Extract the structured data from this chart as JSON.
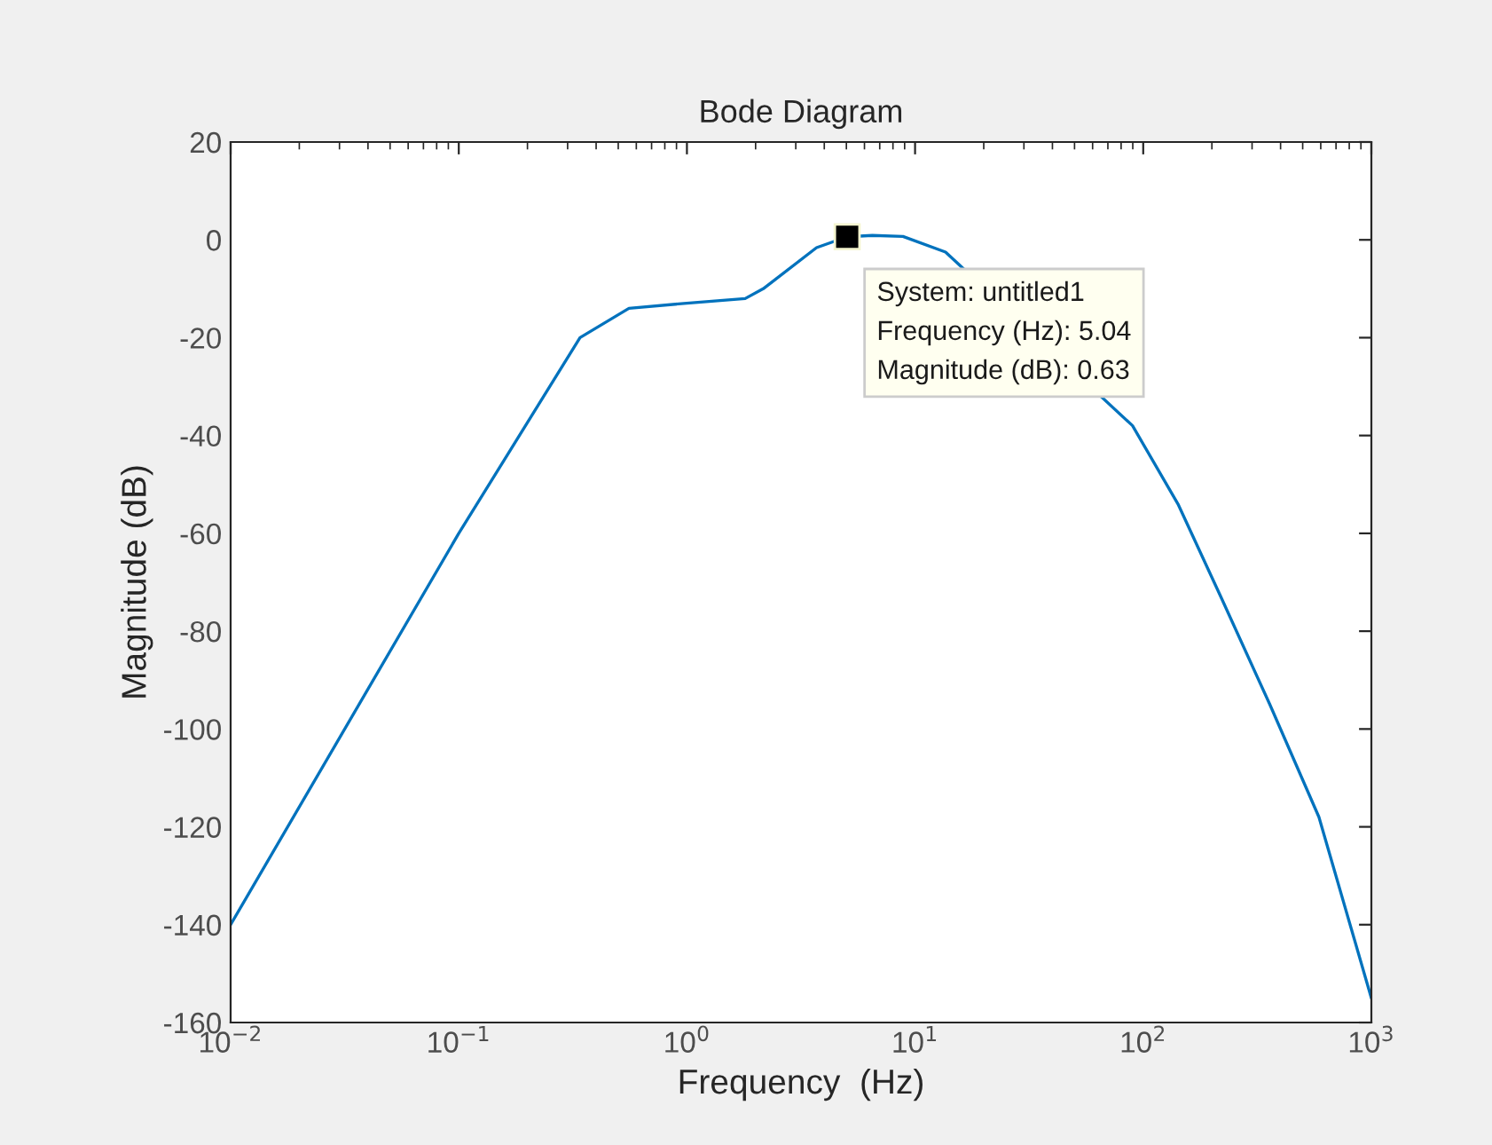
{
  "chart_data": {
    "type": "line",
    "title": "Bode Diagram",
    "xlabel": "Frequency  (Hz)",
    "ylabel": "Magnitude (dB)",
    "log": "x",
    "xlim": [
      0.01,
      1000
    ],
    "xticks": [
      {
        "value": 0.01,
        "label": "10$^{−2}$"
      },
      {
        "value": 0.1,
        "label": "10$^{−1}$"
      },
      {
        "value": 1,
        "label": "10$^{0}$"
      },
      {
        "value": 10,
        "label": "10$^{1}$"
      },
      {
        "value": 100,
        "label": "10$^{2}$"
      },
      {
        "value": 1000,
        "label": "10$^{3}$"
      }
    ],
    "ylim": [
      -160,
      20
    ],
    "yticks": [
      -160,
      -140,
      -120,
      -100,
      -80,
      -60,
      -40,
      -20,
      0,
      20
    ],
    "grid": false,
    "legend": false,
    "line_style": "solid",
    "marker": "none",
    "series": [
      {
        "color": "#0072bd",
        "x": [
          0.01,
          0.1,
          0.34,
          0.557,
          0.97,
          1.8,
          2.16,
          3.7,
          5.04,
          6.5,
          8.85,
          13.6,
          89.8,
          142,
          219,
          359,
          589,
          1000
        ],
        "values": [
          -140,
          -60,
          -20,
          -14,
          -13,
          -12,
          -10,
          -1.6,
          0.63,
          0.9,
          0.7,
          -2.5,
          -38,
          -54,
          -73,
          -95,
          -118,
          -155
        ]
      }
    ],
    "annotations": [
      {
        "text": "System: untitled1\nFrequency (Hz): 5.04\nMagnitude (dB): 0.63",
        "x": 5.04,
        "y": 0.63
      }
    ]
  }
}
